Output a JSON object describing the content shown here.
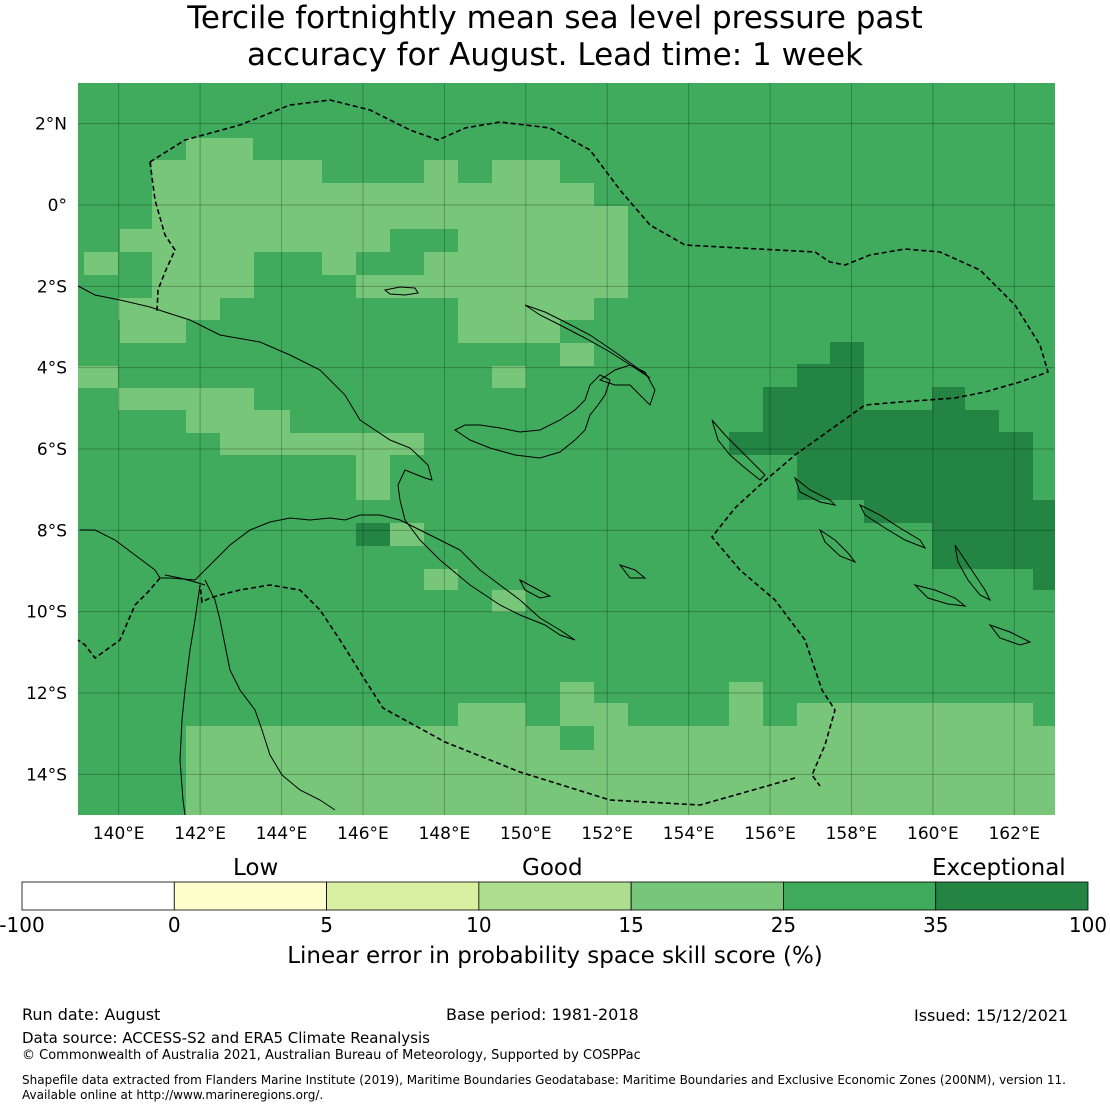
{
  "title": {
    "line1": "Tercile fortnightly mean sea level pressure past",
    "line2": "accuracy for August. Lead time: 1 week"
  },
  "map": {
    "lon_labels": [
      "140°E",
      "142°E",
      "144°E",
      "146°E",
      "148°E",
      "150°E",
      "152°E",
      "154°E",
      "156°E",
      "158°E",
      "160°E",
      "162°E"
    ],
    "lat_labels": [
      "2°N",
      "0°",
      "2°S",
      "4°S",
      "6°S",
      "8°S",
      "10°S",
      "12°S",
      "14°S"
    ],
    "lon_range": [
      139,
      163
    ],
    "lat_range": [
      -15,
      3
    ],
    "cell_size_deg": 0.833,
    "category_colors": [
      "#ffffff",
      "#ffffcc",
      "#d9f0a3",
      "#addd8e",
      "#78c679",
      "#41ab5d",
      "#238443"
    ],
    "base_category": 5,
    "grid": true
  },
  "colorbar": {
    "bounds": [
      -100,
      0,
      5,
      10,
      15,
      25,
      35,
      100
    ],
    "tick_labels": [
      "-100",
      "0",
      "5",
      "10",
      "15",
      "25",
      "35",
      "100"
    ],
    "category_words": [
      "Low",
      "Good",
      "Exceptional"
    ],
    "label": "Linear error in probability space skill score (%)"
  },
  "footer": {
    "run_date": "Run date: August",
    "base_period": "Base period: 1981-2018",
    "issued": "Issued: 15/12/2021",
    "data_source": "Data source: ACCESS-S2 and ERA5 Climate Reanalysis",
    "copyright": "© Commonwealth of Australia 2021, Australian Bureau of Meteorology, Supported by COSPPac",
    "shapefile_line1": "Shapefile data extracted from Flanders Marine Institute (2019), Maritime Boundaries Geodatabase: Maritime Boundaries and Exclusive Economic Zones (200NM), version 11.",
    "shapefile_line2": "Available online at http://www.marineregions.org/."
  }
}
